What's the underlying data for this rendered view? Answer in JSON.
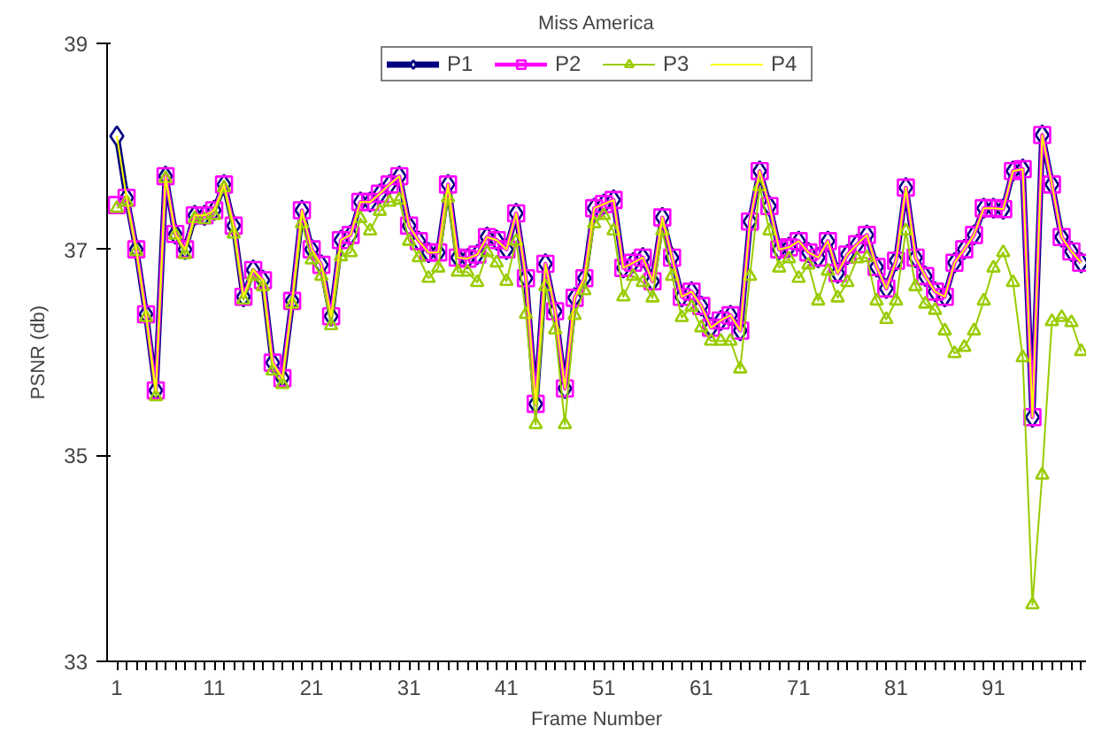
{
  "chart_data": {
    "type": "line",
    "title": "Miss America",
    "xlabel": "Frame Number",
    "ylabel": "PSNR (db)",
    "categories": [
      "1",
      null,
      null,
      null,
      null,
      null,
      null,
      null,
      null,
      null,
      "11",
      null,
      null,
      null,
      null,
      null,
      null,
      null,
      null,
      null,
      "21",
      null,
      null,
      null,
      null,
      null,
      null,
      null,
      null,
      null,
      "31",
      null,
      null,
      null,
      null,
      null,
      null,
      null,
      null,
      null,
      "41",
      null,
      null,
      null,
      null,
      null,
      null,
      null,
      null,
      null,
      "51",
      null,
      null,
      null,
      null,
      null,
      null,
      null,
      null,
      null,
      "61",
      null,
      null,
      null,
      null,
      null,
      null,
      null,
      null,
      null,
      "71",
      null,
      null,
      null,
      null,
      null,
      null,
      null,
      null,
      null,
      "81",
      null,
      null,
      null,
      null,
      null,
      null,
      null,
      null,
      null,
      "91",
      null,
      null,
      null,
      null,
      null,
      null,
      null,
      null,
      null
    ],
    "ylim": [
      33,
      39
    ],
    "yticks": [
      33,
      35,
      37,
      39
    ],
    "grid": false,
    "legend": "top",
    "line_style": "solid",
    "series": [
      {
        "name": "P1",
        "color": "#000080",
        "marker": "diamond",
        "values": [
          38.1,
          37.5,
          37.0,
          36.37,
          35.63,
          37.71,
          37.15,
          37.0,
          37.33,
          37.33,
          37.38,
          37.63,
          37.23,
          36.54,
          36.8,
          36.7,
          35.9,
          35.75,
          36.5,
          37.38,
          37.0,
          36.85,
          36.35,
          37.09,
          37.14,
          37.46,
          37.46,
          37.54,
          37.63,
          37.71,
          37.23,
          37.08,
          36.97,
          36.97,
          37.63,
          36.92,
          36.91,
          36.95,
          37.12,
          37.09,
          37.0,
          37.35,
          36.72,
          35.5,
          36.86,
          36.4,
          35.65,
          36.53,
          36.72,
          37.4,
          37.44,
          37.48,
          36.82,
          36.87,
          36.92,
          36.69,
          37.31,
          36.92,
          36.54,
          36.59,
          36.45,
          36.24,
          36.31,
          36.36,
          36.21,
          37.27,
          37.76,
          37.42,
          37.0,
          37.02,
          37.08,
          36.97,
          36.92,
          37.08,
          36.77,
          36.95,
          37.05,
          37.14,
          36.83,
          36.62,
          36.89,
          37.6,
          36.92,
          36.74,
          36.59,
          36.54,
          36.87,
          37.0,
          37.14,
          37.4,
          37.4,
          37.39,
          37.76,
          37.78,
          35.37,
          38.11,
          37.63,
          37.12,
          36.98,
          36.87
        ]
      },
      {
        "name": "P2",
        "color": "#ff00ff",
        "marker": "square",
        "values": [
          37.43,
          37.5,
          37.0,
          36.37,
          35.63,
          37.71,
          37.15,
          37.0,
          37.33,
          37.33,
          37.38,
          37.63,
          37.23,
          36.54,
          36.8,
          36.7,
          35.9,
          35.75,
          36.5,
          37.38,
          37.0,
          36.85,
          36.35,
          37.09,
          37.14,
          37.46,
          37.46,
          37.54,
          37.63,
          37.71,
          37.23,
          37.08,
          36.97,
          36.97,
          37.63,
          36.92,
          36.91,
          36.95,
          37.12,
          37.09,
          37.0,
          37.35,
          36.72,
          35.5,
          36.86,
          36.4,
          35.65,
          36.53,
          36.72,
          37.4,
          37.44,
          37.48,
          36.82,
          36.87,
          36.92,
          36.69,
          37.31,
          36.92,
          36.54,
          36.59,
          36.45,
          36.24,
          36.31,
          36.36,
          36.21,
          37.27,
          37.76,
          37.42,
          37.0,
          37.02,
          37.08,
          36.97,
          36.92,
          37.08,
          36.77,
          36.95,
          37.05,
          37.14,
          36.83,
          36.62,
          36.89,
          37.6,
          36.92,
          36.74,
          36.59,
          36.54,
          36.87,
          37.0,
          37.14,
          37.4,
          37.4,
          37.39,
          37.76,
          37.78,
          35.37,
          38.11,
          37.63,
          37.12,
          36.98,
          36.87
        ]
      },
      {
        "name": "P3",
        "color": "#99cc00",
        "marker": "triangle",
        "values": [
          37.4,
          37.46,
          36.98,
          36.34,
          35.57,
          37.69,
          37.14,
          36.95,
          37.3,
          37.29,
          37.33,
          37.6,
          37.15,
          36.51,
          36.74,
          36.64,
          35.82,
          35.69,
          36.47,
          37.25,
          36.9,
          36.74,
          36.26,
          36.93,
          36.97,
          37.3,
          37.18,
          37.37,
          37.46,
          37.48,
          37.08,
          36.92,
          36.72,
          36.82,
          37.5,
          36.78,
          36.78,
          36.68,
          36.97,
          36.87,
          36.69,
          37.08,
          36.37,
          35.3,
          36.64,
          36.22,
          35.3,
          36.36,
          36.6,
          37.25,
          37.33,
          37.18,
          36.54,
          36.74,
          36.68,
          36.53,
          37.18,
          36.74,
          36.34,
          36.44,
          36.24,
          36.11,
          36.11,
          36.11,
          35.84,
          36.74,
          37.61,
          37.18,
          36.82,
          36.91,
          36.72,
          36.85,
          36.5,
          36.79,
          36.53,
          36.68,
          36.91,
          36.92,
          36.5,
          36.32,
          36.5,
          37.18,
          36.64,
          36.47,
          36.41,
          36.21,
          35.99,
          36.05,
          36.21,
          36.5,
          36.82,
          36.97,
          36.68,
          35.95,
          33.55,
          34.81,
          36.3,
          36.34,
          36.29,
          36.01
        ]
      },
      {
        "name": "P4",
        "color": "#ffff00",
        "marker": "none",
        "values": [
          38.1,
          37.5,
          37.0,
          36.37,
          35.63,
          37.71,
          37.15,
          37.0,
          37.33,
          37.33,
          37.38,
          37.63,
          37.23,
          36.54,
          36.8,
          36.7,
          35.9,
          35.75,
          36.5,
          37.38,
          37.0,
          36.85,
          36.35,
          37.09,
          37.14,
          37.46,
          37.46,
          37.54,
          37.63,
          37.71,
          37.23,
          37.08,
          36.97,
          36.97,
          37.63,
          36.92,
          36.91,
          36.95,
          37.12,
          37.09,
          37.0,
          37.35,
          36.72,
          35.5,
          36.86,
          36.4,
          35.65,
          36.53,
          36.72,
          37.4,
          37.44,
          37.48,
          36.82,
          36.87,
          36.92,
          36.69,
          37.31,
          36.92,
          36.54,
          36.59,
          36.45,
          36.24,
          36.31,
          36.36,
          36.21,
          37.27,
          37.76,
          37.42,
          37.0,
          37.02,
          37.08,
          36.97,
          36.92,
          37.08,
          36.77,
          36.95,
          37.05,
          37.14,
          36.83,
          36.62,
          36.89,
          37.6,
          36.92,
          36.74,
          36.59,
          36.54,
          36.87,
          37.0,
          37.14,
          37.4,
          37.4,
          37.39,
          37.76,
          37.78,
          35.37,
          38.11,
          37.63,
          37.12,
          36.98,
          36.87
        ]
      }
    ]
  }
}
